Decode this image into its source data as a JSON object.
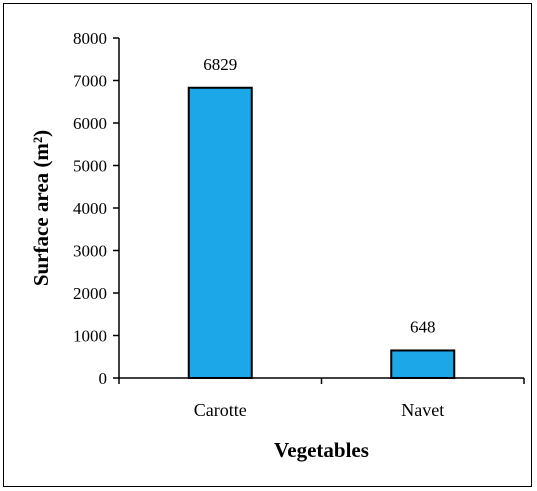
{
  "chart_data": {
    "type": "bar",
    "categories": [
      "Carotte",
      "Navet"
    ],
    "values": [
      6829,
      648
    ],
    "data_labels": [
      "6829",
      "648"
    ],
    "xlabel": "Vegetables",
    "ylabel": "Surface  area  (m²)",
    "ylim": [
      0,
      8000
    ],
    "yticks": [
      "0",
      "1000",
      "2000",
      "3000",
      "4000",
      "5000",
      "6000",
      "7000",
      "8000"
    ],
    "bar_color": "#1ba7e8",
    "bar_edge_color": "#000000",
    "grid": false,
    "legend": "none"
  }
}
